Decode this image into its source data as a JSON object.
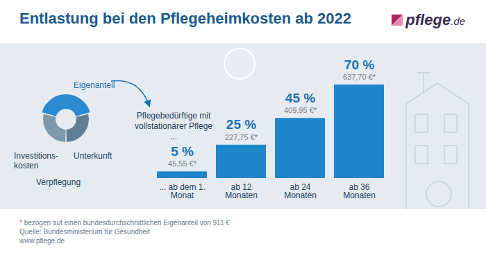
{
  "chart_data": {
    "type": "bar",
    "title": "Entlastung bei den Pflegeheimkosten ab 2022",
    "logo": {
      "name": "pflege",
      "tld": ".de"
    },
    "annotation": "Pflegebedürftige mit vollstationärer Pflege ...",
    "categories": [
      "... ab dem 1. Monat",
      "ab 12 Monaten",
      "ab 24 Monaten",
      "ab 36 Monaten"
    ],
    "values": [
      5,
      25,
      45,
      70
    ],
    "value_labels": [
      "5 %",
      "25 %",
      "45 %",
      "70 %"
    ],
    "amount_labels": [
      "45,55 €*",
      "227,75 €*",
      "409,95 €*",
      "637,70 €*"
    ],
    "color": "#1f86cc",
    "ylim": [
      0,
      70
    ],
    "tick_labels": "x",
    "data_labels": true,
    "donut": {
      "highlight": "Eigenanteil",
      "labels": [
        "Investitions-\nkosten",
        "Unterkunft",
        "Verpflegung"
      ]
    },
    "footnote": "* bezogen auf einen bundesdurchschnittlichen Eigenanteil von 911 €",
    "source": "Quelle: Bundesministerium für Gesundheit",
    "url": "www.pflege.de"
  }
}
